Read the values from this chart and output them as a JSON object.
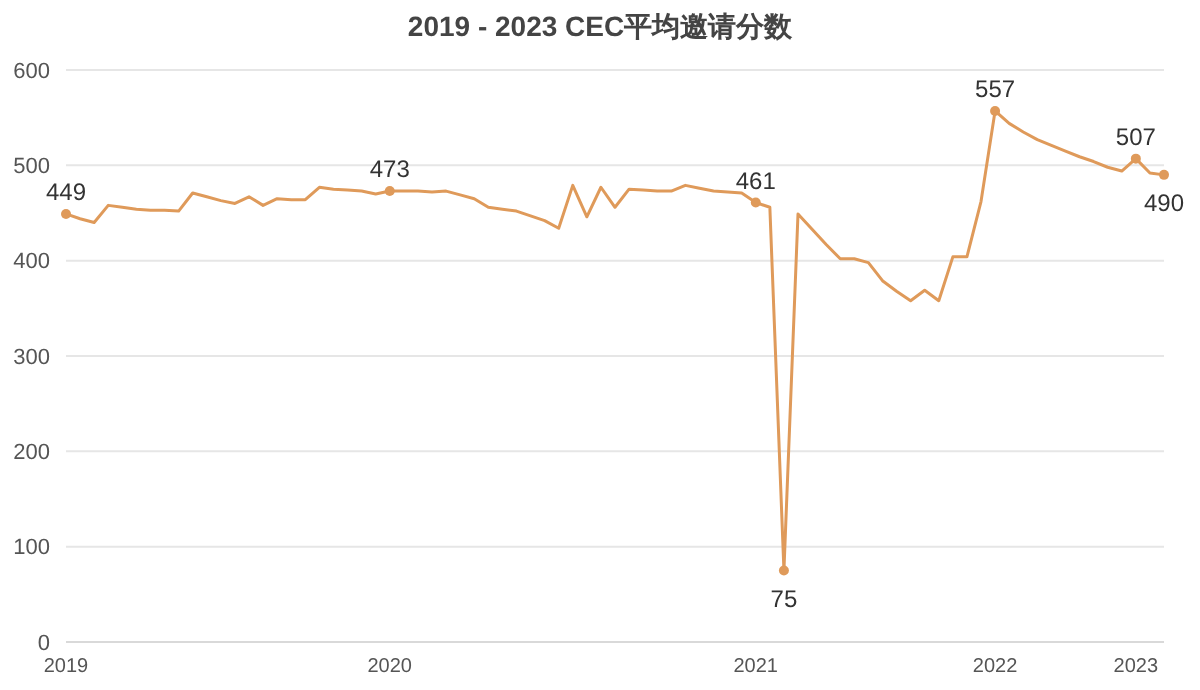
{
  "chart_data": {
    "type": "line",
    "title": "2019 - 2023 CEC平均邀请分数",
    "categories": [
      "2019",
      null,
      null,
      null,
      null,
      null,
      null,
      null,
      null,
      null,
      null,
      null,
      null,
      null,
      null,
      null,
      null,
      null,
      null,
      null,
      null,
      null,
      null,
      "2020",
      null,
      null,
      null,
      null,
      null,
      null,
      null,
      null,
      null,
      null,
      null,
      null,
      null,
      null,
      null,
      null,
      null,
      null,
      null,
      null,
      null,
      null,
      null,
      null,
      null,
      "2021",
      null,
      null,
      null,
      null,
      null,
      null,
      null,
      null,
      null,
      null,
      null,
      null,
      null,
      null,
      null,
      null,
      "2022",
      null,
      null,
      null,
      null,
      null,
      null,
      null,
      null,
      null,
      "2023",
      null,
      null
    ],
    "series": [
      {
        "color": "#df9a5a",
        "values": [
          449,
          444,
          440,
          458,
          456,
          454,
          453,
          453,
          452,
          471,
          467,
          463,
          460,
          467,
          458,
          465,
          464,
          464,
          477,
          475,
          474,
          473,
          470,
          473,
          473,
          473,
          472,
          473,
          469,
          465,
          456,
          454,
          452,
          447,
          442,
          434,
          479,
          446,
          477,
          456,
          475,
          474,
          473,
          473,
          479,
          476,
          473,
          472,
          471,
          461,
          456,
          75,
          449,
          433,
          417,
          402,
          402,
          398,
          379,
          368,
          358,
          369,
          358,
          404,
          404,
          462,
          557,
          544,
          535,
          527,
          521,
          515,
          509,
          504,
          498,
          494,
          507,
          492,
          490
        ],
        "value_labels": [
          "449",
          null,
          null,
          null,
          null,
          null,
          null,
          null,
          null,
          null,
          null,
          null,
          null,
          null,
          null,
          null,
          null,
          null,
          null,
          null,
          null,
          null,
          null,
          "473",
          null,
          null,
          null,
          null,
          null,
          null,
          null,
          null,
          null,
          null,
          null,
          null,
          null,
          null,
          null,
          null,
          null,
          null,
          null,
          null,
          null,
          null,
          null,
          null,
          null,
          "461",
          null,
          "75",
          null,
          null,
          null,
          null,
          null,
          null,
          null,
          null,
          null,
          null,
          null,
          null,
          null,
          null,
          "557",
          null,
          null,
          null,
          null,
          null,
          null,
          null,
          null,
          null,
          "507",
          null,
          "490"
        ]
      }
    ],
    "ylim": [
      0,
      600
    ],
    "yticks": [
      0,
      100,
      200,
      300,
      400,
      500,
      600
    ],
    "grid": "y",
    "legend": false
  }
}
